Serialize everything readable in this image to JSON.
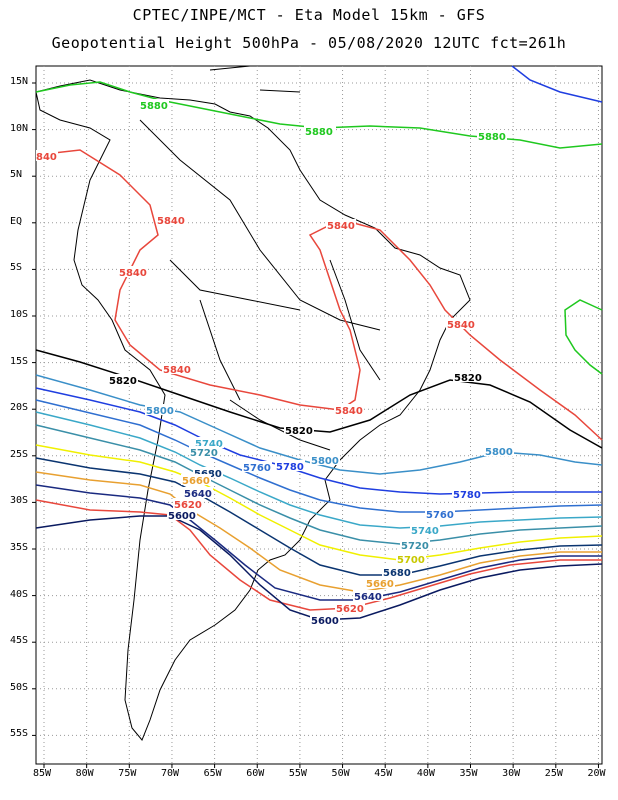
{
  "header": {
    "title_line1": "CPTEC/INPE/MCT -  Eta Model 15km - GFS",
    "title_line2": "Geopotential Height 500hPa - 05/08/2020 12UTC fct=261h"
  },
  "axes": {
    "lat_labels": [
      "15N",
      "10N",
      "5N",
      "EQ",
      "5S",
      "10S",
      "15S",
      "20S",
      "25S",
      "30S",
      "35S",
      "40S",
      "45S",
      "50S",
      "55S"
    ],
    "lat_values": [
      15,
      10,
      5,
      0,
      -5,
      -10,
      -15,
      -20,
      -25,
      -30,
      -35,
      -40,
      -45,
      -50,
      -55
    ],
    "lon_labels": [
      "85W",
      "80W",
      "75W",
      "70W",
      "65W",
      "60W",
      "55W",
      "50W",
      "45W",
      "40W",
      "35W",
      "30W",
      "25W",
      "20W"
    ],
    "lon_values": [
      -85,
      -80,
      -75,
      -70,
      -65,
      -60,
      -55,
      -50,
      -45,
      -40,
      -35,
      -30,
      -25,
      -20
    ]
  },
  "contours": [
    {
      "level": "5880",
      "color": "#1fc81f"
    },
    {
      "level": "5840",
      "color": "#e8473c"
    },
    {
      "level": "5820",
      "color": "#000000"
    },
    {
      "level": "5800",
      "color": "#3a8fc8"
    },
    {
      "level": "5780",
      "color": "#1f3ee0"
    },
    {
      "level": "5760",
      "color": "#2f6fd0"
    },
    {
      "level": "5740",
      "color": "#3aa8c8"
    },
    {
      "level": "5720",
      "color": "#3a8fa8"
    },
    {
      "level": "5700",
      "color": "#f0f000"
    },
    {
      "level": "5680",
      "color": "#0a3470"
    },
    {
      "level": "5660",
      "color": "#e8a030"
    },
    {
      "level": "5640",
      "color": "#1a2a80"
    },
    {
      "level": "5620",
      "color": "#e8473c"
    },
    {
      "level": "5600",
      "color": "#0a1a60"
    }
  ],
  "labels": {
    "g1": "5880",
    "g2": "5880",
    "g3": "5880",
    "r1": "840",
    "r2": "5840",
    "r3": "5840",
    "r4": "5840",
    "r5": "5840",
    "r6": "5840",
    "r7": "5840",
    "b1": "5820",
    "b2": "5820",
    "b3": "5820",
    "c1": "5800",
    "c2": "5800",
    "c3": "5800",
    "d1": "5780",
    "d2": "5780",
    "e1": "5760",
    "e2": "5760",
    "f1": "5740",
    "f2": "5740",
    "h1": "5720",
    "h2": "5720",
    "y1": "5700",
    "k1": "5680",
    "k2": "5680",
    "o1": "5660",
    "o2": "5660",
    "n1": "5640",
    "n2": "5640",
    "s1": "5620",
    "s2": "5620",
    "m1": "5600",
    "m2": "5600"
  }
}
